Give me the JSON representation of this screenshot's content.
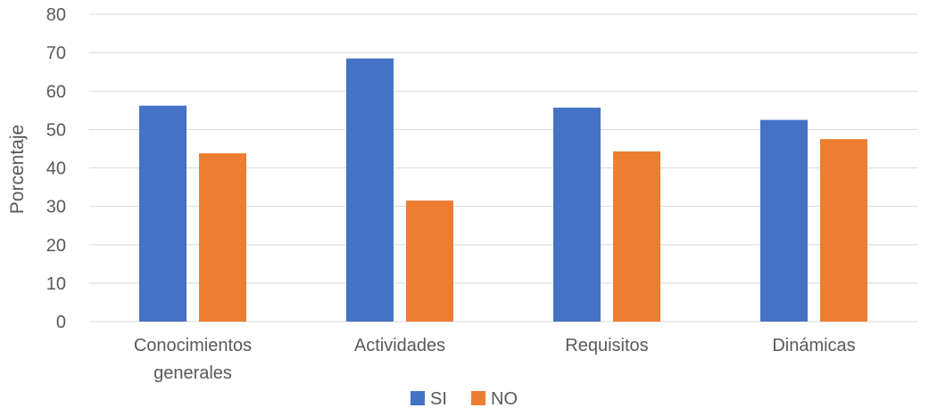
{
  "chart_data": {
    "type": "bar",
    "title": "",
    "xlabel": "",
    "ylabel": "Porcentaje",
    "ylim": [
      0,
      80
    ],
    "yticks": [
      0,
      10,
      20,
      30,
      40,
      50,
      60,
      70,
      80
    ],
    "grid": true,
    "legend_position": "bottom",
    "categories": [
      [
        "Conocimientos",
        "generales"
      ],
      [
        "Actividades"
      ],
      [
        "Requisitos"
      ],
      [
        "Dinámicas"
      ]
    ],
    "series": [
      {
        "name": "SI",
        "color": "#4472C4",
        "values": [
          56.2,
          68.5,
          55.7,
          52.5
        ]
      },
      {
        "name": "NO",
        "color": "#ED7D31",
        "values": [
          43.8,
          31.5,
          44.3,
          47.5
        ]
      }
    ]
  }
}
